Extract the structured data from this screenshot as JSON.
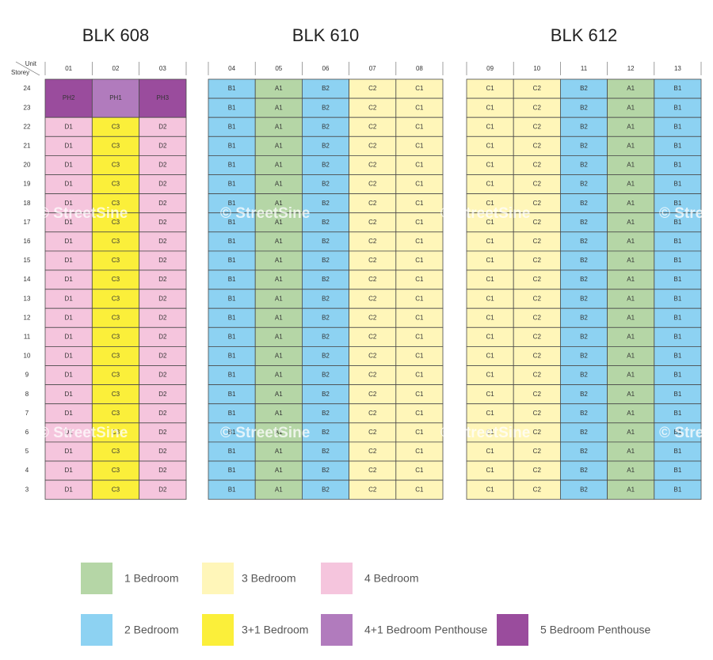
{
  "corner": {
    "unit": "Unit",
    "storey": "Storey"
  },
  "watermark": "© StreetSine",
  "storeys": [
    "24",
    "23",
    "22",
    "21",
    "20",
    "19",
    "18",
    "17",
    "16",
    "15",
    "14",
    "13",
    "12",
    "11",
    "10",
    "9",
    "8",
    "7",
    "6",
    "5",
    "4",
    "3"
  ],
  "blocks": [
    {
      "title": "BLK 608",
      "units": [
        "01",
        "02",
        "03"
      ],
      "rows": [
        [
          "PH2",
          "PH1",
          "PH3"
        ],
        null,
        [
          "D1",
          "C3",
          "D2"
        ],
        [
          "D1",
          "C3",
          "D2"
        ],
        [
          "D1",
          "C3",
          "D2"
        ],
        [
          "D1",
          "C3",
          "D2"
        ],
        [
          "D1",
          "C3",
          "D2"
        ],
        [
          "D1",
          "C3",
          "D2"
        ],
        [
          "D1",
          "C3",
          "D2"
        ],
        [
          "D1",
          "C3",
          "D2"
        ],
        [
          "D1",
          "C3",
          "D2"
        ],
        [
          "D1",
          "C3",
          "D2"
        ],
        [
          "D1",
          "C3",
          "D2"
        ],
        [
          "D1",
          "C3",
          "D2"
        ],
        [
          "D1",
          "C3",
          "D2"
        ],
        [
          "D1",
          "C3",
          "D2"
        ],
        [
          "D1",
          "C3",
          "D2"
        ],
        [
          "D1",
          "C3",
          "D2"
        ],
        [
          "D1",
          "C3",
          "D2"
        ],
        [
          "D1",
          "C3",
          "D2"
        ],
        [
          "D1",
          "C3",
          "D2"
        ],
        [
          "D1",
          "C3",
          "D2"
        ]
      ]
    },
    {
      "title": "BLK 610",
      "units": [
        "04",
        "05",
        "06",
        "07",
        "08"
      ],
      "rows": [
        [
          "B1",
          "A1",
          "B2",
          "C2",
          "C1"
        ],
        [
          "B1",
          "A1",
          "B2",
          "C2",
          "C1"
        ],
        [
          "B1",
          "A1",
          "B2",
          "C2",
          "C1"
        ],
        [
          "B1",
          "A1",
          "B2",
          "C2",
          "C1"
        ],
        [
          "B1",
          "A1",
          "B2",
          "C2",
          "C1"
        ],
        [
          "B1",
          "A1",
          "B2",
          "C2",
          "C1"
        ],
        [
          "B1",
          "A1",
          "B2",
          "C2",
          "C1"
        ],
        [
          "B1",
          "A1",
          "B2",
          "C2",
          "C1"
        ],
        [
          "B1",
          "A1",
          "B2",
          "C2",
          "C1"
        ],
        [
          "B1",
          "A1",
          "B2",
          "C2",
          "C1"
        ],
        [
          "B1",
          "A1",
          "B2",
          "C2",
          "C1"
        ],
        [
          "B1",
          "A1",
          "B2",
          "C2",
          "C1"
        ],
        [
          "B1",
          "A1",
          "B2",
          "C2",
          "C1"
        ],
        [
          "B1",
          "A1",
          "B2",
          "C2",
          "C1"
        ],
        [
          "B1",
          "A1",
          "B2",
          "C2",
          "C1"
        ],
        [
          "B1",
          "A1",
          "B2",
          "C2",
          "C1"
        ],
        [
          "B1",
          "A1",
          "B2",
          "C2",
          "C1"
        ],
        [
          "B1",
          "A1",
          "B2",
          "C2",
          "C1"
        ],
        [
          "B1",
          "A1",
          "B2",
          "C2",
          "C1"
        ],
        [
          "B1",
          "A1",
          "B2",
          "C2",
          "C1"
        ],
        [
          "B1",
          "A1",
          "B2",
          "C2",
          "C1"
        ],
        [
          "B1",
          "A1",
          "B2",
          "C2",
          "C1"
        ]
      ]
    },
    {
      "title": "BLK 612",
      "units": [
        "09",
        "10",
        "11",
        "12",
        "13"
      ],
      "rows": [
        [
          "C1",
          "C2",
          "B2",
          "A1",
          "B1"
        ],
        [
          "C1",
          "C2",
          "B2",
          "A1",
          "B1"
        ],
        [
          "C1",
          "C2",
          "B2",
          "A1",
          "B1"
        ],
        [
          "C1",
          "C2",
          "B2",
          "A1",
          "B1"
        ],
        [
          "C1",
          "C2",
          "B2",
          "A1",
          "B1"
        ],
        [
          "C1",
          "C2",
          "B2",
          "A1",
          "B1"
        ],
        [
          "C1",
          "C2",
          "B2",
          "A1",
          "B1"
        ],
        [
          "C1",
          "C2",
          "B2",
          "A1",
          "B1"
        ],
        [
          "C1",
          "C2",
          "B2",
          "A1",
          "B1"
        ],
        [
          "C1",
          "C2",
          "B2",
          "A1",
          "B1"
        ],
        [
          "C1",
          "C2",
          "B2",
          "A1",
          "B1"
        ],
        [
          "C1",
          "C2",
          "B2",
          "A1",
          "B1"
        ],
        [
          "C1",
          "C2",
          "B2",
          "A1",
          "B1"
        ],
        [
          "C1",
          "C2",
          "B2",
          "A1",
          "B1"
        ],
        [
          "C1",
          "C2",
          "B2",
          "A1",
          "B1"
        ],
        [
          "C1",
          "C2",
          "B2",
          "A1",
          "B1"
        ],
        [
          "C1",
          "C2",
          "B2",
          "A1",
          "B1"
        ],
        [
          "C1",
          "C2",
          "B2",
          "A1",
          "B1"
        ],
        [
          "C1",
          "C2",
          "B2",
          "A1",
          "B1"
        ],
        [
          "C1",
          "C2",
          "B2",
          "A1",
          "B1"
        ],
        [
          "C1",
          "C2",
          "B2",
          "A1",
          "B1"
        ],
        [
          "C1",
          "C2",
          "B2",
          "A1",
          "B1"
        ]
      ]
    }
  ],
  "legend": [
    {
      "label": "1 Bedroom",
      "color": "#b5d6a6",
      "codes": [
        "A1"
      ]
    },
    {
      "label": "3 Bedroom",
      "color": "#fff6b9",
      "codes": [
        "C1",
        "C2"
      ]
    },
    {
      "label": "4 Bedroom",
      "color": "#f5c5dd",
      "codes": [
        "D1",
        "D2"
      ]
    },
    {
      "label": "2 Bedroom",
      "color": "#8dd2f2",
      "codes": [
        "B1",
        "B2"
      ]
    },
    {
      "label": "3+1 Bedroom",
      "color": "#fbef3a",
      "codes": [
        "C3"
      ]
    },
    {
      "label": "4+1 Bedroom Penthouse",
      "color": "#b17bbd",
      "codes": [
        "PH1"
      ]
    },
    {
      "label": "5 Bedroom Penthouse",
      "color": "#9a4c9d",
      "codes": [
        "PH2",
        "PH3"
      ]
    }
  ]
}
